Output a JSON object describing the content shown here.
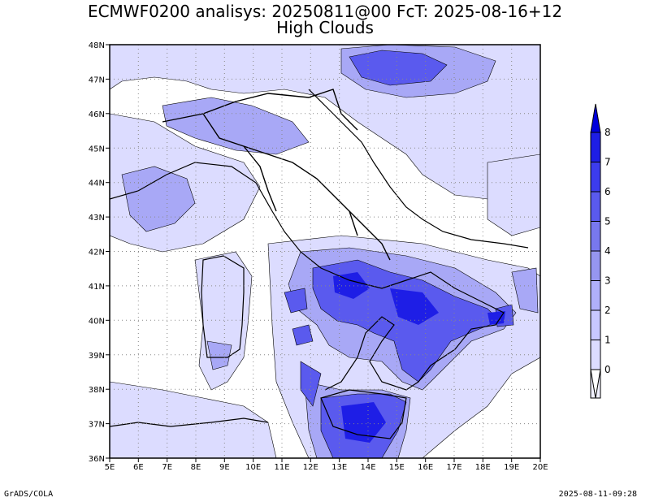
{
  "title_line1": "ECMWF0200 analisys: 20250811@00 FcT: 2025-08-16+12",
  "title_line2": "High Clouds",
  "footer_left": "GrADS/COLA",
  "footer_right": "2025-08-11-09:28",
  "map": {
    "lon_range": [
      5,
      20
    ],
    "lat_range": [
      36,
      48
    ],
    "lon_ticks": [
      "5E",
      "6E",
      "7E",
      "8E",
      "9E",
      "10E",
      "11E",
      "12E",
      "13E",
      "14E",
      "15E",
      "16E",
      "17E",
      "18E",
      "19E",
      "20E"
    ],
    "lat_ticks": [
      "36N",
      "37N",
      "38N",
      "39N",
      "40N",
      "41N",
      "42N",
      "43N",
      "44N",
      "45N",
      "46N",
      "47N",
      "48N"
    ],
    "grid": true,
    "grid_style": "dotted"
  },
  "colorbar": {
    "levels": [
      "0",
      "1",
      "2",
      "3",
      "4",
      "5",
      "6",
      "7",
      "8"
    ],
    "colors": [
      "#f0f0ff",
      "#dcdcff",
      "#c8c8ff",
      "#b0b0fa",
      "#9696f0",
      "#7878ee",
      "#5a5aee",
      "#3c3cee",
      "#1e1ee6",
      "#0000dc"
    ]
  }
}
